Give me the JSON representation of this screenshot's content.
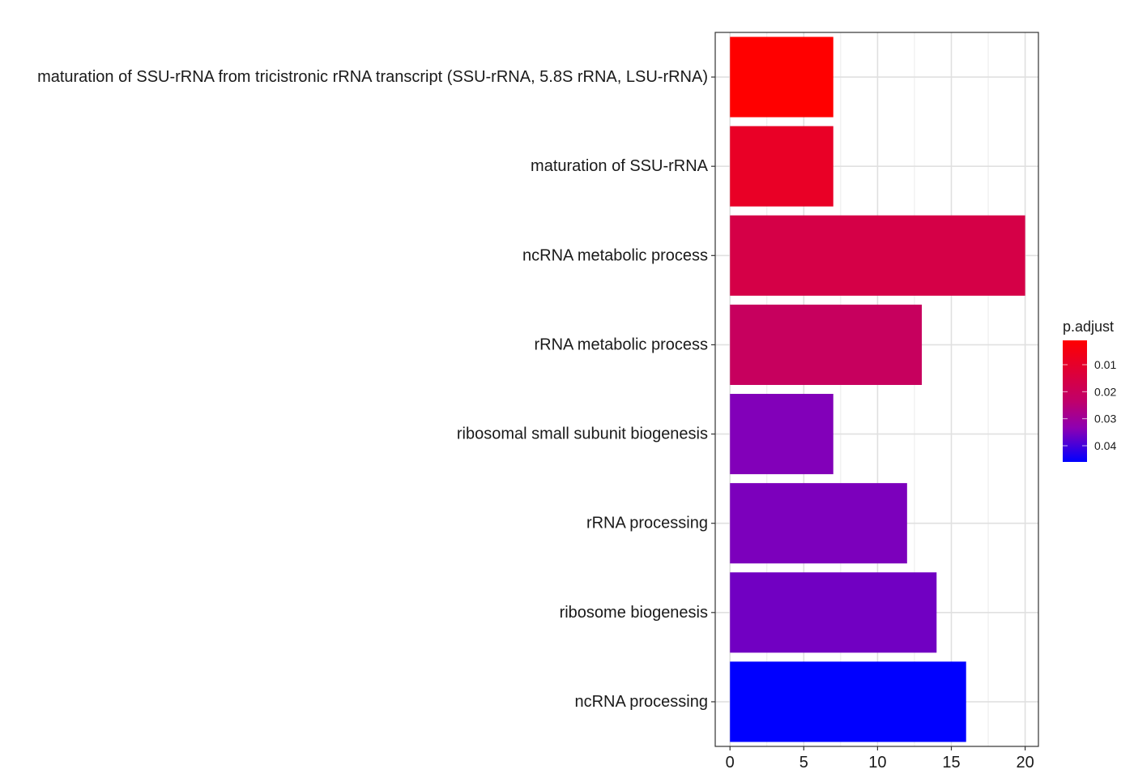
{
  "chart_data": {
    "type": "bar",
    "orientation": "horizontal",
    "title": "",
    "xlabel": "",
    "ylabel": "",
    "categories": [
      "maturation of SSU-rRNA from tricistronic rRNA transcript (SSU-rRNA, 5.8S rRNA, LSU-rRNA)",
      "maturation of SSU-rRNA",
      "ncRNA metabolic process",
      "rRNA metabolic process",
      "ribosomal small subunit biogenesis",
      "rRNA processing",
      "ribosome biogenesis",
      "ncRNA processing"
    ],
    "values": [
      7,
      7,
      20,
      13,
      7,
      12,
      14,
      16
    ],
    "p_adjust": [
      0.001,
      0.009,
      0.016,
      0.021,
      0.0345,
      0.035,
      0.036,
      0.046
    ],
    "xlim": [
      -1,
      20.9
    ],
    "xticks": [
      "0",
      "5",
      "10",
      "15",
      "20"
    ],
    "xtick_values": [
      0,
      5,
      10,
      15,
      20
    ],
    "grid": true,
    "color_low": "#ff0000",
    "color_high": "#0000ff",
    "legend": {
      "title": "p.adjust",
      "placement": "right",
      "labels": [
        "0.01",
        "0.02",
        "0.03",
        "0.04"
      ],
      "label_values": [
        0.01,
        0.02,
        0.03,
        0.04
      ],
      "range": [
        0.001,
        0.046
      ]
    }
  }
}
